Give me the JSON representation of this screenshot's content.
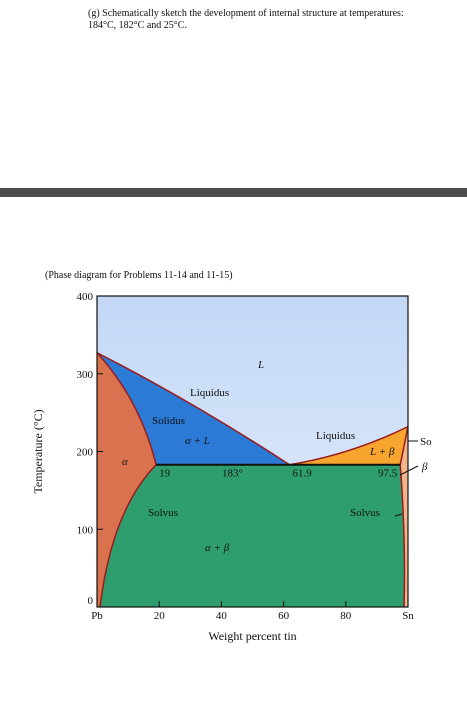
{
  "question": "(g) Schematically sketch the development of internal structure at temperatures: 184°C, 182°C and 25°C.",
  "caption": "(Phase diagram for Problems 11-14 and 11-15)",
  "figure": {
    "xlabel": "Weight percent tin",
    "ylabel": "Temperature (°C)",
    "xlim": [
      0,
      100
    ],
    "ylim": [
      0,
      400
    ],
    "xticks": [
      {
        "value": 0,
        "label": "Pb"
      },
      20,
      40,
      60,
      80,
      {
        "value": 100,
        "label": "Sn"
      }
    ],
    "yticks": [
      0,
      100,
      200,
      300,
      400
    ],
    "pb_melting": 327,
    "sn_melting": 232,
    "alpha_max": 19,
    "beta_max": 97.5,
    "eutectic": {
      "composition": 61.9,
      "temperature": 183,
      "temperature_label": "183°"
    },
    "labels": [
      "L",
      "Liquidus",
      "Solidus",
      "α + L",
      "α",
      "Liquidus",
      "L + β",
      "Solvus",
      "Solvus",
      "α + β",
      "So",
      "β"
    ]
  }
}
